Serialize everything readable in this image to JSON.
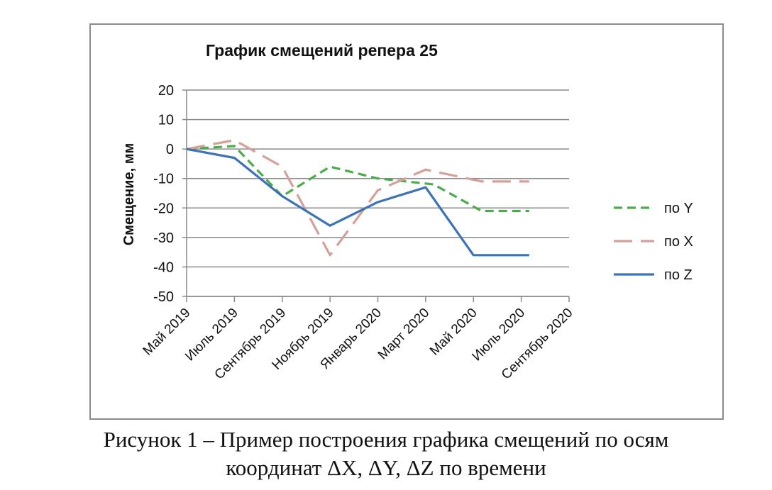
{
  "chart_data": {
    "type": "line",
    "title": "График смещений репера 25",
    "ylabel": "Смещение, мм",
    "xlabel": "",
    "ylim": [
      -50,
      20
    ],
    "yticks": [
      20,
      10,
      0,
      -10,
      -20,
      -30,
      -40,
      -50
    ],
    "categories": [
      "Май 2019",
      "Июль 2019",
      "Сентябрь 2019",
      "Ноябрь 2019",
      "Январь 2020",
      "Март 2020",
      "Май 2020",
      "Июль 2020",
      "Сентябрь 2020"
    ],
    "x": [
      0,
      1.5,
      3,
      4.5,
      6,
      7.5,
      9,
      10.5,
      12
    ],
    "grid": true,
    "legend_position": "right",
    "series": [
      {
        "name": "по Y",
        "color": "#4aac4a",
        "dash": "short-dash",
        "x": [
          0,
          3,
          6,
          9,
          12,
          15.5,
          18.5,
          21.5
        ],
        "values": [
          0,
          1,
          -16,
          -6,
          -10,
          -12,
          -21,
          -21
        ]
      },
      {
        "name": "по X",
        "color": "#d4a09a",
        "dash": "long-dash",
        "x": [
          0,
          3,
          6,
          9,
          12,
          15,
          18.5,
          21.5
        ],
        "values": [
          0,
          3,
          -6,
          -36,
          -14,
          -7,
          -11,
          -11
        ]
      },
      {
        "name": "по Z",
        "color": "#3a73b8",
        "dash": "solid",
        "x": [
          0,
          3,
          6,
          9,
          12,
          15,
          18,
          21.5
        ],
        "values": [
          0,
          -3,
          -16,
          -26,
          -18,
          -13,
          -36,
          -36
        ]
      }
    ]
  },
  "caption": {
    "line1": "Рисунок 1 – Пример построения графика смещений по осям",
    "line2": "координат ΔX, ΔY, ΔZ по времени"
  }
}
